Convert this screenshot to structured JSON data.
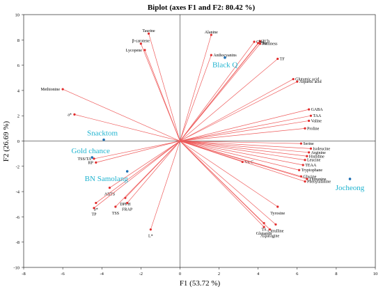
{
  "chart_data": {
    "type": "scatter",
    "title": "Biplot (axes F1 and F2: 80.42 %)",
    "xlabel": "F1 (53.72 %)",
    "ylabel": "F2 (26.69 %)",
    "xlim": [
      -8,
      10
    ],
    "ylim": [
      -10,
      10
    ],
    "xticks": [
      -8,
      -6,
      -4,
      -2,
      0,
      2,
      4,
      6,
      8,
      10
    ],
    "yticks": [
      -10,
      -8,
      -6,
      -4,
      -2,
      0,
      2,
      4,
      6,
      8,
      10
    ],
    "grid": false,
    "variables": [
      {
        "name": "Taurine",
        "x": -1.6,
        "y": 8.5
      },
      {
        "name": "Alanine",
        "x": 1.6,
        "y": 8.4
      },
      {
        "name": "TCh",
        "x": 4.1,
        "y": 7.9
      },
      {
        "name": "Chb",
        "x": 3.8,
        "y": 7.85
      },
      {
        "name": "Cha",
        "x": 4.0,
        "y": 7.75
      },
      {
        "name": "Firmness",
        "x": 4.1,
        "y": 7.7
      },
      {
        "name": "β-carotene",
        "x": -2.0,
        "y": 7.7
      },
      {
        "name": "Lycopene",
        "x": -1.8,
        "y": 7.2
      },
      {
        "name": "Anthocyanins",
        "x": 1.6,
        "y": 6.8
      },
      {
        "name": "TF",
        "x": 5.0,
        "y": 6.5
      },
      {
        "name": "Glutamic acid",
        "x": 5.8,
        "y": 4.9
      },
      {
        "name": "Aspartic acid",
        "x": 6.0,
        "y": 4.7
      },
      {
        "name": "Methionine",
        "x": -6.0,
        "y": 4.1
      },
      {
        "name": "a*",
        "x": -5.4,
        "y": 2.1
      },
      {
        "name": "GABA",
        "x": 6.6,
        "y": 2.5
      },
      {
        "name": "TAA",
        "x": 6.7,
        "y": 2.0
      },
      {
        "name": "Valine",
        "x": 6.6,
        "y": 1.6
      },
      {
        "name": "Proline",
        "x": 6.4,
        "y": 1.0
      },
      {
        "name": "Serine",
        "x": 6.2,
        "y": -0.2
      },
      {
        "name": "Isoleucine",
        "x": 6.7,
        "y": -0.6
      },
      {
        "name": "Arginine",
        "x": 6.6,
        "y": -0.9
      },
      {
        "name": "Histidine",
        "x": 6.5,
        "y": -1.2
      },
      {
        "name": "Leucine",
        "x": 6.4,
        "y": -1.5
      },
      {
        "name": "TEAA",
        "x": 6.3,
        "y": -1.9
      },
      {
        "name": "Vit C",
        "x": 3.2,
        "y": -1.65
      },
      {
        "name": "Tryptophane",
        "x": 6.1,
        "y": -2.3
      },
      {
        "name": "Glycine",
        "x": 6.2,
        "y": -2.8
      },
      {
        "name": "Threonine",
        "x": 6.5,
        "y": -3.0
      },
      {
        "name": "Phenylalanine",
        "x": 6.4,
        "y": -3.2
      },
      {
        "name": "TSS/TA",
        "x": -4.4,
        "y": -1.4
      },
      {
        "name": "RP",
        "x": -4.3,
        "y": -1.7
      },
      {
        "name": "ABTS",
        "x": -3.6,
        "y": -3.7
      },
      {
        "name": "b*",
        "x": -4.3,
        "y": -4.9
      },
      {
        "name": "TP",
        "x": -4.4,
        "y": -5.3
      },
      {
        "name": "DPPH",
        "x": -2.8,
        "y": -4.5
      },
      {
        "name": "TSS",
        "x": -3.3,
        "y": -5.2
      },
      {
        "name": "FRAP",
        "x": -2.7,
        "y": -4.9
      },
      {
        "name": "L*",
        "x": -1.5,
        "y": -7.0
      },
      {
        "name": "Tyrosine",
        "x": 5.0,
        "y": -5.2
      },
      {
        "name": "Citrulline",
        "x": 4.9,
        "y": -6.6
      },
      {
        "name": "TA",
        "x": 4.3,
        "y": -6.5
      },
      {
        "name": "Glutamin",
        "x": 4.3,
        "y": -6.8
      },
      {
        "name": "Asparagine",
        "x": 4.6,
        "y": -7.0
      }
    ],
    "samples": [
      {
        "name": "Black Q",
        "x": 2.3,
        "y": 6.6
      },
      {
        "name": "Snacktom",
        "x": -3.9,
        "y": 0.1
      },
      {
        "name": "Gold chance",
        "x": -4.5,
        "y": -1.3
      },
      {
        "name": "BN Samolang",
        "x": -2.7,
        "y": -2.4
      },
      {
        "name": "Jocheong",
        "x": 8.7,
        "y": -3.0
      }
    ]
  }
}
